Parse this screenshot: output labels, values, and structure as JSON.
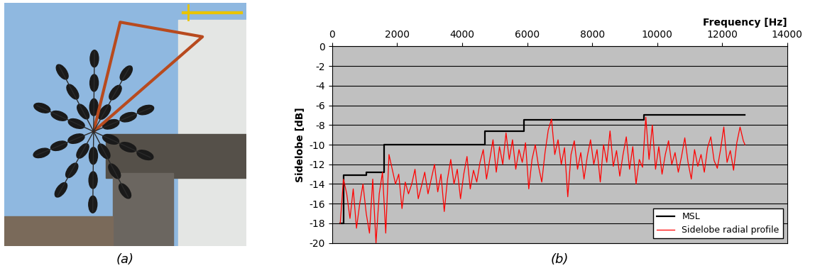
{
  "photo": {
    "caption": "(a)"
  },
  "chart_data": {
    "type": "line",
    "caption": "(b)",
    "x_label": "Frequency [Hz]",
    "y_label": "Sidelobe [dB]",
    "xlim": [
      0,
      14000
    ],
    "xticks": [
      0,
      2000,
      4000,
      6000,
      8000,
      10000,
      12000,
      14000
    ],
    "ylim": [
      -20,
      0
    ],
    "yticks": [
      -20,
      -18,
      -16,
      -14,
      -12,
      -10,
      -8,
      -6,
      -4,
      -2,
      0
    ],
    "grid": "y",
    "legend": "lower right",
    "series": [
      {
        "name": "MSL",
        "color": "#000000",
        "line_style": "steps",
        "x": [
          250,
          350,
          1050,
          1600,
          4700,
          5900,
          9600,
          12700
        ],
        "values": [
          -18,
          -13.1,
          -12.8,
          -10,
          -8.6,
          -7.5,
          -7,
          -7
        ]
      },
      {
        "name": "Sidelobe radial profile",
        "color": "#ff0000",
        "line_style": "solid",
        "x": [
          250,
          350,
          450,
          550,
          650,
          750,
          850,
          950,
          1050,
          1150,
          1250,
          1350,
          1450,
          1550,
          1650,
          1750,
          1850,
          1950,
          2050,
          2150,
          2250,
          2350,
          2450,
          2550,
          2650,
          2750,
          2850,
          2950,
          3050,
          3150,
          3250,
          3350,
          3450,
          3550,
          3650,
          3750,
          3850,
          3950,
          4050,
          4150,
          4250,
          4350,
          4450,
          4550,
          4650,
          4750,
          4850,
          4950,
          5050,
          5150,
          5250,
          5350,
          5450,
          5550,
          5650,
          5750,
          5850,
          5950,
          6050,
          6150,
          6250,
          6350,
          6450,
          6550,
          6650,
          6750,
          6850,
          6950,
          7050,
          7150,
          7250,
          7350,
          7450,
          7550,
          7650,
          7750,
          7850,
          7950,
          8050,
          8150,
          8250,
          8350,
          8450,
          8550,
          8650,
          8750,
          8850,
          8950,
          9050,
          9150,
          9250,
          9350,
          9450,
          9550,
          9650,
          9750,
          9850,
          9950,
          10050,
          10150,
          10250,
          10350,
          10450,
          10550,
          10650,
          10750,
          10850,
          10950,
          11050,
          11150,
          11250,
          11350,
          11450,
          11550,
          11650,
          11750,
          11850,
          11950,
          12050,
          12150,
          12250,
          12350,
          12450,
          12550,
          12650,
          12700
        ],
        "values": [
          -18,
          -13.5,
          -15,
          -17.5,
          -14.5,
          -18.5,
          -16,
          -14,
          -17,
          -19,
          -13.5,
          -20,
          -15,
          -12.8,
          -19,
          -11,
          -12.5,
          -14,
          -13,
          -16.5,
          -13.8,
          -15,
          -14,
          -12.5,
          -15.5,
          -14.2,
          -12.8,
          -15,
          -13.5,
          -12,
          -14.8,
          -13,
          -16.8,
          -13.5,
          -11.5,
          -14,
          -12.5,
          -15.5,
          -13,
          -11.2,
          -14.5,
          -12.6,
          -13.8,
          -11.8,
          -10.5,
          -13.5,
          -11.5,
          -9.5,
          -12.8,
          -10.2,
          -12,
          -8.8,
          -11.5,
          -9.5,
          -12.5,
          -10.5,
          -11.8,
          -9.8,
          -14.5,
          -11.5,
          -10,
          -12.2,
          -13.8,
          -10.8,
          -8.5,
          -7.4,
          -11,
          -9.5,
          -12,
          -10.3,
          -15.3,
          -11,
          -9.6,
          -12.5,
          -10.8,
          -13.5,
          -11.2,
          -9.5,
          -12,
          -10.5,
          -13.8,
          -10,
          -11.8,
          -8.6,
          -12.2,
          -10.6,
          -13.2,
          -11,
          -9.2,
          -12.5,
          -10.2,
          -14,
          -11.5,
          -12.3,
          -7.2,
          -11.5,
          -8,
          -12.5,
          -10.2,
          -13,
          -11,
          -9.6,
          -12,
          -10.8,
          -12.8,
          -11.2,
          -9.3,
          -11.8,
          -13.5,
          -10.5,
          -12.2,
          -11,
          -12.8,
          -10.3,
          -9.2,
          -11.6,
          -12.4,
          -10.5,
          -8.2,
          -11.8,
          -10.6,
          -12.6,
          -9.8,
          -8.2,
          -9.6,
          -10
        ]
      }
    ]
  }
}
